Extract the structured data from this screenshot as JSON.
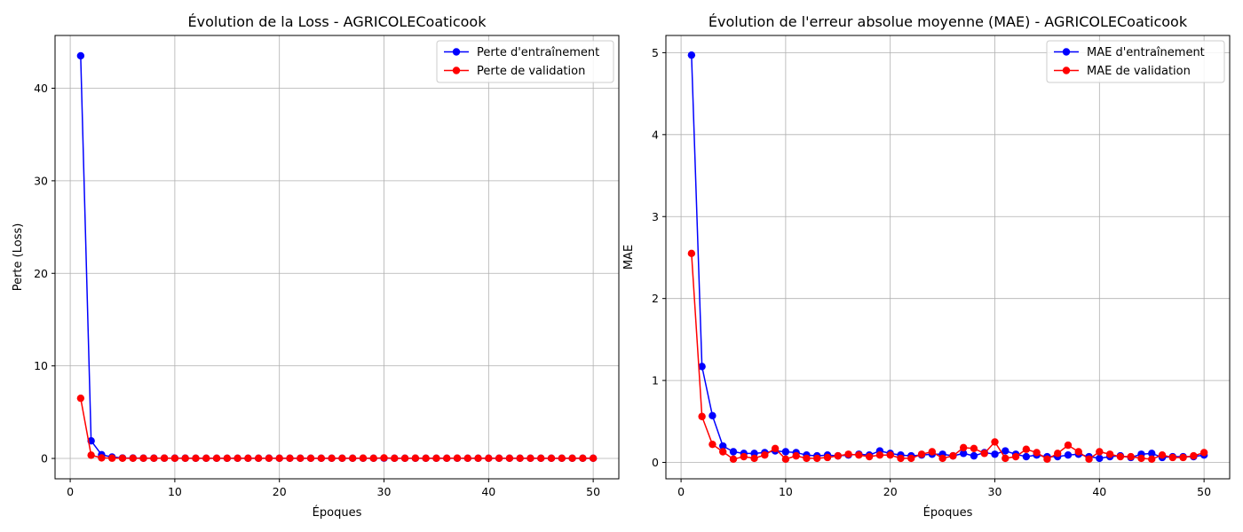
{
  "chart_data": [
    {
      "type": "line",
      "title": "Évolution de la Loss - AGRICOLECoaticook",
      "xlabel": "Époques",
      "ylabel": "Perte (Loss)",
      "xlim": [
        -1.45,
        52.45
      ],
      "ylim": [
        -2.2,
        45.7
      ],
      "xticks": [
        0,
        10,
        20,
        30,
        40,
        50
      ],
      "yticks": [
        0,
        10,
        20,
        30,
        40
      ],
      "grid": true,
      "legend_position": "top-right",
      "x": [
        1,
        2,
        3,
        4,
        5,
        6,
        7,
        8,
        9,
        10,
        11,
        12,
        13,
        14,
        15,
        16,
        17,
        18,
        19,
        20,
        21,
        22,
        23,
        24,
        25,
        26,
        27,
        28,
        29,
        30,
        31,
        32,
        33,
        34,
        35,
        36,
        37,
        38,
        39,
        40,
        41,
        42,
        43,
        44,
        45,
        46,
        47,
        48,
        49,
        50
      ],
      "series": [
        {
          "name": "Perte d'entraînement",
          "color": "#0000ff",
          "values": [
            43.5,
            1.9,
            0.4,
            0.15,
            0.05,
            0.04,
            0.03,
            0.03,
            0.03,
            0.03,
            0.03,
            0.02,
            0.02,
            0.02,
            0.02,
            0.02,
            0.02,
            0.02,
            0.03,
            0.02,
            0.02,
            0.02,
            0.02,
            0.02,
            0.02,
            0.02,
            0.02,
            0.02,
            0.02,
            0.03,
            0.02,
            0.02,
            0.02,
            0.02,
            0.02,
            0.02,
            0.02,
            0.02,
            0.02,
            0.02,
            0.02,
            0.02,
            0.02,
            0.02,
            0.02,
            0.02,
            0.02,
            0.02,
            0.02,
            0.02
          ]
        },
        {
          "name": "Perte de validation",
          "color": "#ff0000",
          "values": [
            6.5,
            0.35,
            0.06,
            0.03,
            0.02,
            0.02,
            0.02,
            0.02,
            0.03,
            0.02,
            0.02,
            0.02,
            0.02,
            0.02,
            0.02,
            0.02,
            0.02,
            0.02,
            0.02,
            0.02,
            0.02,
            0.02,
            0.02,
            0.02,
            0.02,
            0.02,
            0.02,
            0.03,
            0.02,
            0.06,
            0.02,
            0.02,
            0.03,
            0.02,
            0.02,
            0.02,
            0.03,
            0.02,
            0.02,
            0.02,
            0.02,
            0.02,
            0.02,
            0.02,
            0.02,
            0.02,
            0.02,
            0.02,
            0.02,
            0.02
          ]
        }
      ]
    },
    {
      "type": "line",
      "title": "Évolution de l'erreur absolue moyenne (MAE) - AGRICOLECoaticook",
      "xlabel": "Époques",
      "ylabel": "MAE",
      "xlim": [
        -1.45,
        52.45
      ],
      "ylim": [
        -0.2,
        5.21
      ],
      "xticks": [
        0,
        10,
        20,
        30,
        40,
        50
      ],
      "yticks": [
        0,
        1,
        2,
        3,
        4,
        5
      ],
      "grid": true,
      "legend_position": "top-right",
      "x": [
        1,
        2,
        3,
        4,
        5,
        6,
        7,
        8,
        9,
        10,
        11,
        12,
        13,
        14,
        15,
        16,
        17,
        18,
        19,
        20,
        21,
        22,
        23,
        24,
        25,
        26,
        27,
        28,
        29,
        30,
        31,
        32,
        33,
        34,
        35,
        36,
        37,
        38,
        39,
        40,
        41,
        42,
        43,
        44,
        45,
        46,
        47,
        48,
        49,
        50
      ],
      "series": [
        {
          "name": "MAE d'entraînement",
          "color": "#0000ff",
          "values": [
            4.97,
            1.17,
            0.57,
            0.2,
            0.13,
            0.11,
            0.11,
            0.12,
            0.14,
            0.13,
            0.12,
            0.09,
            0.08,
            0.09,
            0.08,
            0.09,
            0.1,
            0.09,
            0.14,
            0.11,
            0.09,
            0.08,
            0.09,
            0.1,
            0.1,
            0.08,
            0.11,
            0.08,
            0.12,
            0.1,
            0.14,
            0.1,
            0.07,
            0.09,
            0.07,
            0.07,
            0.09,
            0.1,
            0.07,
            0.05,
            0.07,
            0.08,
            0.06,
            0.1,
            0.11,
            0.06,
            0.07,
            0.07,
            0.07,
            0.09
          ]
        },
        {
          "name": "MAE de validation",
          "color": "#ff0000",
          "values": [
            2.55,
            0.56,
            0.22,
            0.13,
            0.04,
            0.07,
            0.05,
            0.09,
            0.17,
            0.04,
            0.08,
            0.05,
            0.05,
            0.06,
            0.08,
            0.1,
            0.09,
            0.07,
            0.09,
            0.09,
            0.05,
            0.05,
            0.1,
            0.13,
            0.05,
            0.08,
            0.18,
            0.17,
            0.11,
            0.25,
            0.05,
            0.07,
            0.16,
            0.12,
            0.04,
            0.11,
            0.21,
            0.13,
            0.04,
            0.13,
            0.1,
            0.07,
            0.07,
            0.05,
            0.04,
            0.09,
            0.06,
            0.06,
            0.08,
            0.12
          ]
        }
      ]
    }
  ]
}
